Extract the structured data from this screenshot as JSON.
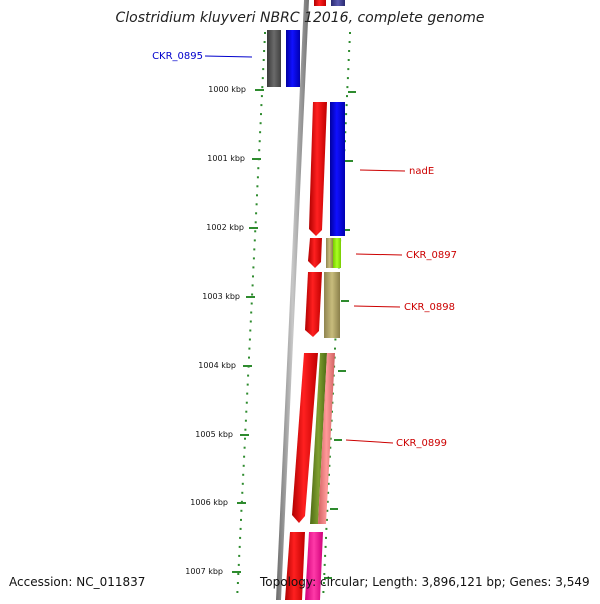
{
  "header": {
    "title": "Clostridium kluyveri NBRC 12016, complete genome"
  },
  "footer": {
    "accession": "Accession: NC_011837",
    "summary": "Topology: circular; Length: 3,896,121 bp; Genes: 3,549"
  },
  "scale": {
    "ticks": [
      "1000 kbp",
      "1001 kbp",
      "1002 kbp",
      "1003 kbp",
      "1004 kbp",
      "1005 kbp",
      "1006 kbp",
      "1007 kbp"
    ]
  },
  "gene_labels": [
    {
      "name": "CKR_0895",
      "color": "#0000cc"
    },
    {
      "name": "nadE",
      "color": "#cc0000"
    },
    {
      "name": "CKR_0897",
      "color": "#cc0000"
    },
    {
      "name": "CKR_0898",
      "color": "#cc0000"
    },
    {
      "name": "CKR_0899",
      "color": "#cc0000"
    }
  ],
  "colors": {
    "scale_dots": "#2e8b2e",
    "backbone": "#8c8c8c",
    "cds": "#ff0000",
    "blue_track": "#0000ff",
    "grey_track": "#555555",
    "olive_track": "#b5a866",
    "lime_track": "#99ff00",
    "green_track": "#6b8e23",
    "salmon_track": "#f08080",
    "magenta_track": "#ff1493",
    "navy_track": "#3a3a8c"
  }
}
